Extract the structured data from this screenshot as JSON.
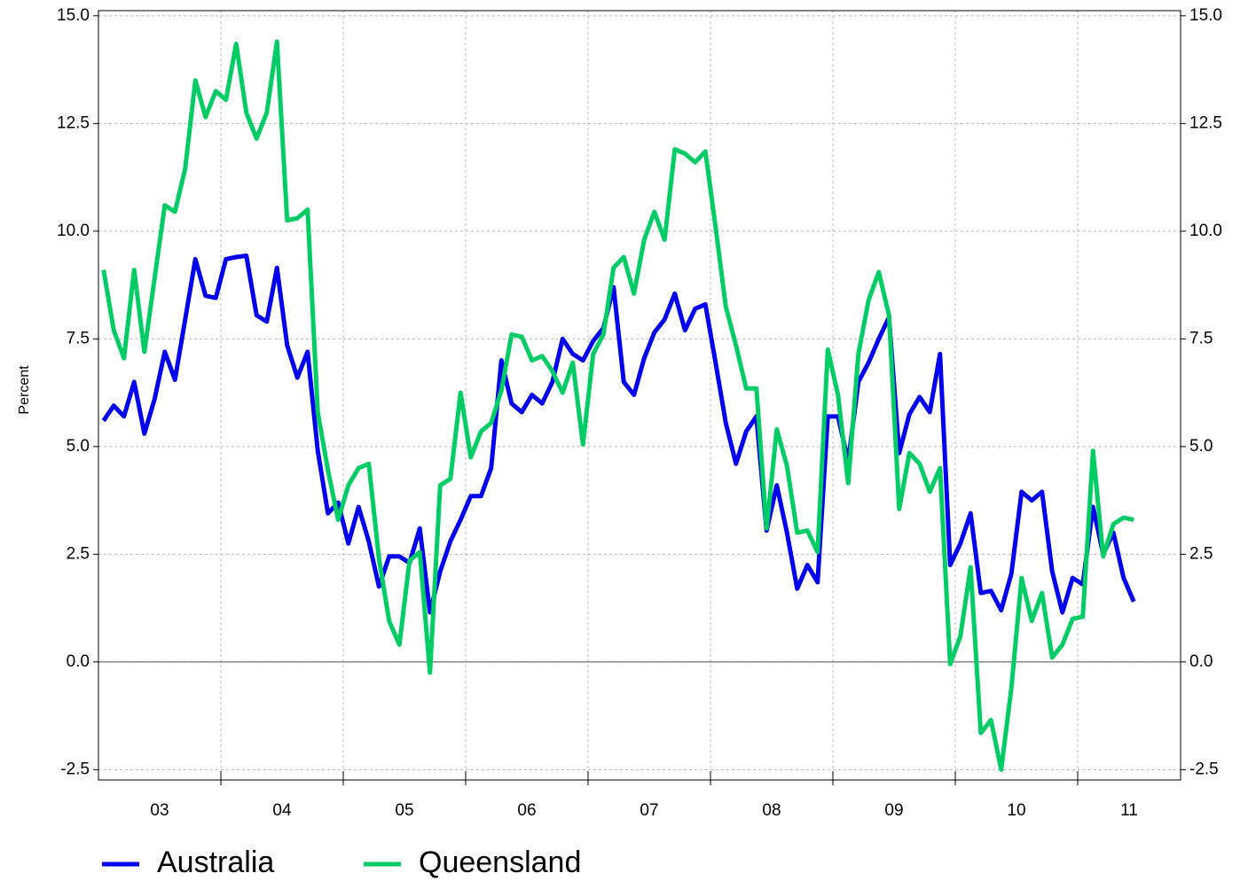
{
  "chart_data": {
    "type": "line",
    "y_label": "Percent",
    "categories": [
      null,
      null,
      null,
      null,
      null,
      null,
      null,
      null,
      null,
      null,
      null,
      null,
      null,
      null,
      null,
      null,
      null,
      null,
      null,
      null,
      null,
      null,
      null,
      null,
      null,
      null,
      null,
      null,
      null,
      null,
      null,
      null,
      null,
      null,
      null,
      null,
      null,
      null,
      null,
      null,
      null,
      null,
      null,
      null,
      null,
      null,
      null,
      null,
      null,
      null,
      null,
      null,
      null,
      null,
      null,
      null,
      null,
      null,
      null,
      null,
      null,
      null,
      null,
      null,
      null,
      null,
      null,
      null,
      null,
      null,
      null,
      null,
      null,
      null,
      null,
      null,
      null,
      null,
      null,
      null,
      null,
      null,
      null,
      null,
      null,
      null,
      null,
      null,
      null,
      null,
      null,
      null,
      null,
      null,
      null,
      null,
      null,
      null,
      null,
      null,
      null,
      null
    ],
    "year_labels": [
      "03",
      "04",
      "05",
      "06",
      "07",
      "08",
      "09",
      "10",
      "11"
    ],
    "series": [
      {
        "name": "Australia",
        "color": "#0000ee",
        "values": [
          5.6,
          5.95,
          5.7,
          6.5,
          5.3,
          6.1,
          7.2,
          6.55,
          7.95,
          9.35,
          8.5,
          8.45,
          9.35,
          9.4,
          9.43,
          8.05,
          7.9,
          9.15,
          7.35,
          6.6,
          7.2,
          4.9,
          3.45,
          3.7,
          2.75,
          3.6,
          2.8,
          1.75,
          2.45,
          2.45,
          2.3,
          3.1,
          1.15,
          2.1,
          2.8,
          3.3,
          3.85,
          3.85,
          4.5,
          7.0,
          6.0,
          5.8,
          6.2,
          6.0,
          6.5,
          7.5,
          7.15,
          7.0,
          7.45,
          7.75,
          8.7,
          6.5,
          6.2,
          7.05,
          7.65,
          7.95,
          8.55,
          7.7,
          8.2,
          8.3,
          6.95,
          5.55,
          4.6,
          5.35,
          5.7,
          3.05,
          4.1,
          3.0,
          1.7,
          2.25,
          1.85,
          5.7,
          5.7,
          4.65,
          6.5,
          6.95,
          7.5,
          8.0,
          4.85,
          5.75,
          6.15,
          5.8,
          7.15,
          2.25,
          2.75,
          3.45,
          1.6,
          1.65,
          1.2,
          2.05,
          3.95,
          3.75,
          3.95,
          2.1,
          1.15,
          1.95,
          1.8,
          3.6,
          2.5,
          3.0,
          1.95,
          1.4
        ]
      },
      {
        "name": "Queensland",
        "color": "#00cc66",
        "values": [
          9.1,
          7.7,
          7.05,
          9.1,
          7.2,
          8.9,
          10.6,
          10.45,
          11.45,
          13.5,
          12.65,
          13.25,
          13.05,
          14.35,
          12.75,
          12.15,
          12.75,
          14.4,
          10.25,
          10.3,
          10.5,
          5.8,
          4.45,
          3.3,
          4.1,
          4.5,
          4.6,
          2.4,
          0.95,
          0.4,
          2.35,
          2.55,
          -0.25,
          4.1,
          4.25,
          6.25,
          4.75,
          5.35,
          5.55,
          6.3,
          7.6,
          7.55,
          7.0,
          7.1,
          6.75,
          6.25,
          6.95,
          5.05,
          7.15,
          7.6,
          9.15,
          9.4,
          8.55,
          9.8,
          10.45,
          9.8,
          11.9,
          11.8,
          11.6,
          11.85,
          10.1,
          8.25,
          7.35,
          6.35,
          6.35,
          3.1,
          5.4,
          4.55,
          3.0,
          3.05,
          2.55,
          7.25,
          6.2,
          4.15,
          7.15,
          8.4,
          9.05,
          8.05,
          3.55,
          4.85,
          4.6,
          3.95,
          4.5,
          -0.05,
          0.6,
          2.2,
          -1.65,
          -1.35,
          -2.5,
          -0.6,
          1.95,
          0.95,
          1.6,
          0.1,
          0.4,
          1.0,
          1.05,
          4.9,
          2.45,
          3.2,
          3.35,
          3.3
        ]
      }
    ],
    "ylim": [
      -2.74,
      15.12
    ],
    "yticks": [
      -2.5,
      {
        "value": 0,
        "label": "0.0"
      },
      2.5,
      {
        "value": 5,
        "label": "5.0"
      },
      7.5,
      {
        "value": 10,
        "label": "10.0"
      },
      12.5,
      {
        "value": 15,
        "label": "15.0"
      }
    ],
    "grid": true,
    "zero_line": true,
    "legend": "bottom-left"
  }
}
